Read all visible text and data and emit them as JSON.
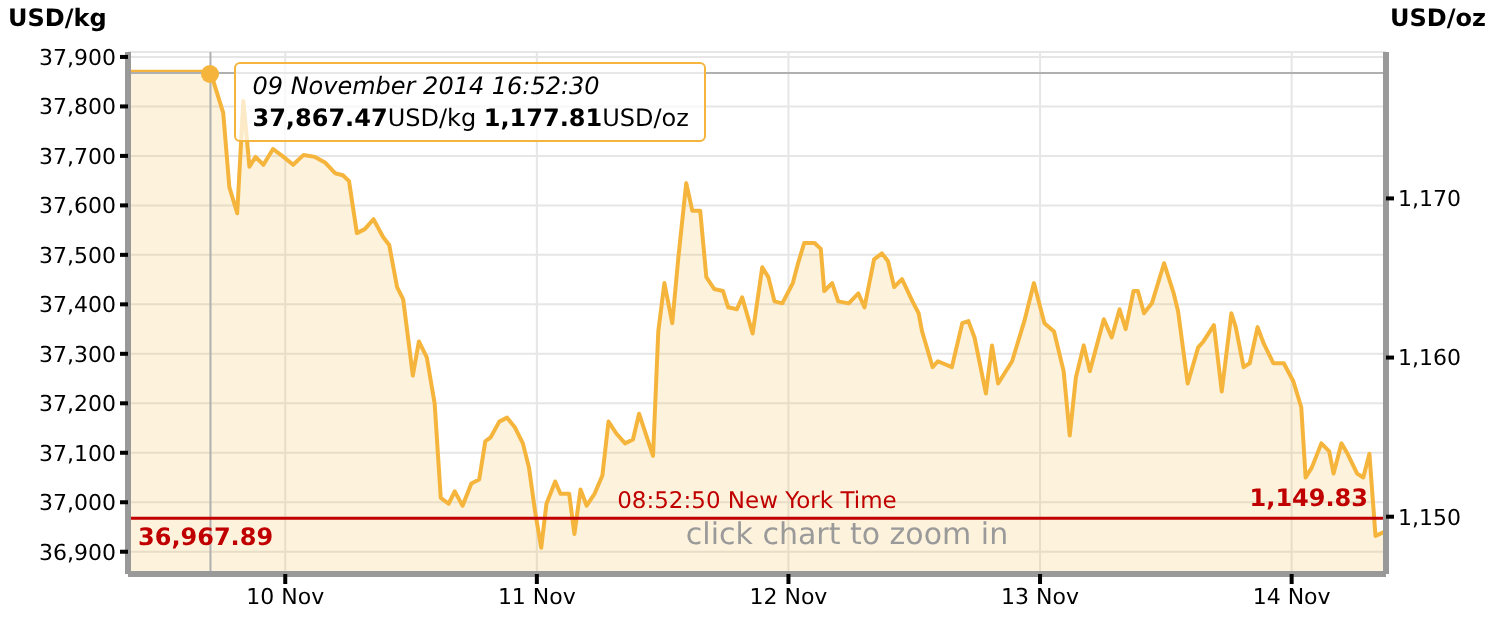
{
  "chart_data": {
    "type": "area",
    "ylabel": "USD/kg",
    "y2label": "USD/oz",
    "x": [
      "2014-11-09T09:00",
      "2014-11-09T16:52",
      "2014-11-09T18:05",
      "2014-11-09T18:40",
      "2014-11-09T19:25",
      "2014-11-09T20:00",
      "2014-11-09T20:35",
      "2014-11-09T21:10",
      "2014-11-09T21:55",
      "2014-11-09T22:50",
      "2014-11-09T23:50",
      "2014-11-10T00:45",
      "2014-11-10T01:45",
      "2014-11-10T02:50",
      "2014-11-10T03:50",
      "2014-11-10T04:45",
      "2014-11-10T05:30",
      "2014-11-10T06:05",
      "2014-11-10T06:50",
      "2014-11-10T07:35",
      "2014-11-10T08:25",
      "2014-11-10T09:20",
      "2014-11-10T09:55",
      "2014-11-10T10:40",
      "2014-11-10T11:15",
      "2014-11-10T11:50",
      "2014-11-10T12:10",
      "2014-11-10T12:45",
      "2014-11-10T13:30",
      "2014-11-10T14:15",
      "2014-11-10T14:50",
      "2014-11-10T15:35",
      "2014-11-10T16:10",
      "2014-11-10T16:55",
      "2014-11-10T17:45",
      "2014-11-10T18:30",
      "2014-11-10T19:05",
      "2014-11-10T19:35",
      "2014-11-10T20:25",
      "2014-11-10T21:10",
      "2014-11-10T21:55",
      "2014-11-10T22:40",
      "2014-11-10T23:15",
      "2014-11-10T23:50",
      "2014-11-11T00:25",
      "2014-11-11T00:55",
      "2014-11-11T01:45",
      "2014-11-11T02:15",
      "2014-11-11T03:05",
      "2014-11-11T03:35",
      "2014-11-11T04:10",
      "2014-11-11T04:45",
      "2014-11-11T05:30",
      "2014-11-11T06:15",
      "2014-11-11T06:50",
      "2014-11-11T07:35",
      "2014-11-11T08:25",
      "2014-11-11T09:10",
      "2014-11-11T09:45",
      "2014-11-11T10:30",
      "2014-11-11T11:05",
      "2014-11-11T11:35",
      "2014-11-11T12:10",
      "2014-11-11T12:55",
      "2014-11-11T13:30",
      "2014-11-11T14:15",
      "2014-11-11T14:50",
      "2014-11-11T15:35",
      "2014-11-11T16:10",
      "2014-11-11T16:55",
      "2014-11-11T17:45",
      "2014-11-11T18:15",
      "2014-11-11T19:05",
      "2014-11-11T19:35",
      "2014-11-11T20:35",
      "2014-11-11T21:30",
      "2014-11-11T22:05",
      "2014-11-11T22:40",
      "2014-11-11T23:25",
      "2014-11-12T00:25",
      "2014-11-12T00:55",
      "2014-11-12T01:30",
      "2014-11-12T02:30",
      "2014-11-12T03:05",
      "2014-11-12T03:25",
      "2014-11-12T04:10",
      "2014-11-12T04:45",
      "2014-11-12T05:45",
      "2014-11-12T06:40",
      "2014-11-12T07:15",
      "2014-11-12T08:10",
      "2014-11-12T08:55",
      "2014-11-12T09:30",
      "2014-11-12T10:05",
      "2014-11-12T10:50",
      "2014-11-12T11:50",
      "2014-11-12T12:25",
      "2014-11-12T12:45",
      "2014-11-12T13:45",
      "2014-11-12T14:15",
      "2014-11-12T15:35",
      "2014-11-12T16:35",
      "2014-11-12T17:10",
      "2014-11-12T17:45",
      "2014-11-12T18:50",
      "2014-11-12T19:25",
      "2014-11-12T20:00",
      "2014-11-12T21:20",
      "2014-11-12T22:30",
      "2014-11-12T23:25",
      "2014-11-13T00:25",
      "2014-11-13T01:20",
      "2014-11-13T02:15",
      "2014-11-13T02:50",
      "2014-11-13T03:25",
      "2014-11-13T04:10",
      "2014-11-13T04:45",
      "2014-11-13T06:05",
      "2014-11-13T06:50",
      "2014-11-13T07:35",
      "2014-11-13T08:10",
      "2014-11-13T08:55",
      "2014-11-13T09:20",
      "2014-11-13T09:55",
      "2014-11-13T10:40",
      "2014-11-13T11:50",
      "2014-11-13T12:45",
      "2014-11-13T13:10",
      "2014-11-13T14:05",
      "2014-11-13T15:05",
      "2014-11-13T15:35",
      "2014-11-13T16:35",
      "2014-11-13T17:20",
      "2014-11-13T18:15",
      "2014-11-13T18:40",
      "2014-11-13T19:25",
      "2014-11-13T20:00",
      "2014-11-13T20:45",
      "2014-11-13T21:20",
      "2014-11-13T22:15",
      "2014-11-13T23:15",
      "2014-11-14T00:10",
      "2014-11-14T00:55",
      "2014-11-14T01:20",
      "2014-11-14T01:55",
      "2014-11-14T02:50",
      "2014-11-14T03:35",
      "2014-11-14T04:00",
      "2014-11-14T04:45",
      "2014-11-14T05:20",
      "2014-11-14T06:15",
      "2014-11-14T06:50",
      "2014-11-14T07:25",
      "2014-11-14T08:00",
      "2014-11-14T08:50"
    ],
    "series": [
      {
        "color": "#f5b53c",
        "values": [
          37870,
          37870,
          37787,
          37637,
          37584,
          37811,
          37678,
          37698,
          37682,
          37714,
          37698,
          37682,
          37702,
          37698,
          37686,
          37665,
          37661,
          37649,
          37544,
          37552,
          37572,
          37536,
          37520,
          37435,
          37410,
          37313,
          37256,
          37325,
          37293,
          37200,
          37009,
          36997,
          37022,
          36993,
          37038,
          37046,
          37123,
          37131,
          37163,
          37171,
          37151,
          37119,
          37070,
          36981,
          36908,
          36997,
          37042,
          37017,
          37017,
          36936,
          37026,
          36993,
          37017,
          37054,
          37163,
          37139,
          37119,
          37127,
          37179,
          37131,
          37094,
          37345,
          37443,
          37362,
          37495,
          37645,
          37589,
          37589,
          37455,
          37431,
          37427,
          37394,
          37390,
          37414,
          37341,
          37475,
          37455,
          37406,
          37402,
          37443,
          37483,
          37524,
          37524,
          37512,
          37427,
          37443,
          37406,
          37402,
          37422,
          37394,
          37491,
          37503,
          37487,
          37435,
          37451,
          37406,
          37382,
          37345,
          37273,
          37285,
          37273,
          37362,
          37366,
          37333,
          37220,
          37317,
          37240,
          37285,
          37366,
          37443,
          37362,
          37345,
          37265,
          37135,
          37252,
          37317,
          37265,
          37370,
          37333,
          37390,
          37350,
          37427,
          37427,
          37382,
          37402,
          37483,
          37422,
          37386,
          37240,
          37313,
          37325,
          37358,
          37224,
          37382,
          37354,
          37273,
          37281,
          37354,
          37321,
          37281,
          37281,
          37244,
          37192,
          37050,
          37070,
          37119,
          37103,
          37058,
          37119,
          37098,
          37058,
          37050,
          37098,
          36932,
          36940
        ]
      }
    ],
    "xlim": [
      "2014-11-09T09:00",
      "2014-11-14T09:00"
    ],
    "xticks": [
      {
        "value": "2014-11-10",
        "label": "10 Nov"
      },
      {
        "value": "2014-11-11",
        "label": "11 Nov"
      },
      {
        "value": "2014-11-12",
        "label": "12 Nov"
      },
      {
        "value": "2014-11-13",
        "label": "13 Nov"
      },
      {
        "value": "2014-11-14",
        "label": "14 Nov"
      }
    ],
    "ylim": [
      36855,
      37910
    ],
    "yticks": [
      {
        "value": 36900,
        "label": "36,900"
      },
      {
        "value": 37000,
        "label": "37,000"
      },
      {
        "value": 37100,
        "label": "37,100"
      },
      {
        "value": 37200,
        "label": "37,200"
      },
      {
        "value": 37300,
        "label": "37,300"
      },
      {
        "value": 37400,
        "label": "37,400"
      },
      {
        "value": 37500,
        "label": "37,500"
      },
      {
        "value": 37600,
        "label": "37,600"
      },
      {
        "value": 37700,
        "label": "37,700"
      },
      {
        "value": 37800,
        "label": "37,800"
      },
      {
        "value": 37900,
        "label": "37,900"
      }
    ],
    "y2lim": [
      1146.4,
      1179.2
    ],
    "y2ticks": [
      {
        "value": 1150,
        "label": "1,150"
      },
      {
        "value": 1160,
        "label": "1,160"
      },
      {
        "value": 1170,
        "label": "1,170"
      }
    ],
    "ref_lines": [
      {
        "axis": "x",
        "value": "2014-11-09T16:52",
        "color": "#b0b0b0"
      },
      {
        "axis": "y",
        "value": 37867.47,
        "color": "#b0b0b0"
      },
      {
        "axis": "y",
        "value": 36967.89,
        "label": "36,967.89",
        "color": "#c00000"
      }
    ],
    "annotations": [
      {
        "text": "09 November 2014 16:52:30",
        "x": "2014-11-09T16:52",
        "y": 37867.47
      },
      {
        "text": "37,867.47USD/kg 1,177.81USD/oz",
        "x": "2014-11-09T16:52",
        "y": 37867.47
      },
      "08:52:50 New York Time",
      "1,149.83",
      "click chart to zoom in"
    ],
    "grid": true,
    "legend": false,
    "marker": "none",
    "line_style": "solid"
  }
}
